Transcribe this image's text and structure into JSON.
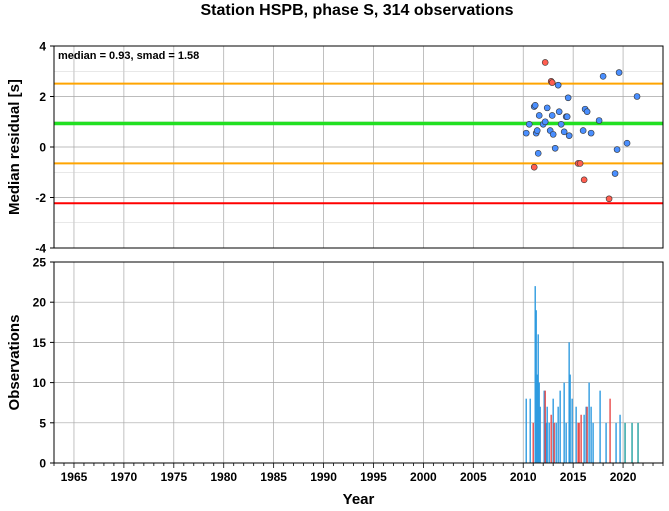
{
  "chart_data": [
    {
      "type": "scatter",
      "title": "Station HSPB, phase S, 314 observations",
      "ylabel": "Median residual [s]",
      "xlim": [
        1963,
        2024
      ],
      "ylim": [
        -4,
        4
      ],
      "y_ticks": [
        -4,
        -2,
        0,
        2,
        4
      ],
      "annotation": "median = 0.93, smad = 1.58",
      "grid": true,
      "reference_lines": [
        {
          "y": 0.93,
          "color": "#22e022"
        },
        {
          "y": 2.51,
          "color": "#ffa500"
        },
        {
          "y": -0.65,
          "color": "#ffa500"
        },
        {
          "y": -2.23,
          "color": "#ff0000"
        }
      ],
      "series": [
        {
          "color": "#4a8fff",
          "points": [
            {
              "x": 2010.3,
              "y": 0.55
            },
            {
              "x": 2010.6,
              "y": 0.9
            },
            {
              "x": 2011.1,
              "y": 1.6
            },
            {
              "x": 2011.2,
              "y": 1.65
            },
            {
              "x": 2011.3,
              "y": 0.55
            },
            {
              "x": 2011.4,
              "y": 0.65
            },
            {
              "x": 2011.5,
              "y": -0.25
            },
            {
              "x": 2011.6,
              "y": 1.25
            },
            {
              "x": 2012.0,
              "y": 0.9
            },
            {
              "x": 2012.2,
              "y": 1.0
            },
            {
              "x": 2012.4,
              "y": 1.55
            },
            {
              "x": 2012.7,
              "y": 0.65
            },
            {
              "x": 2012.9,
              "y": 1.25
            },
            {
              "x": 2013.0,
              "y": 0.5
            },
            {
              "x": 2013.2,
              "y": -0.05
            },
            {
              "x": 2013.5,
              "y": 2.45
            },
            {
              "x": 2013.6,
              "y": 1.4
            },
            {
              "x": 2013.8,
              "y": 0.9
            },
            {
              "x": 2014.1,
              "y": 0.6
            },
            {
              "x": 2014.3,
              "y": 1.2
            },
            {
              "x": 2014.6,
              "y": 0.45
            },
            {
              "x": 2014.5,
              "y": 1.95
            },
            {
              "x": 2014.4,
              "y": 1.2
            },
            {
              "x": 2016.0,
              "y": 0.65
            },
            {
              "x": 2016.2,
              "y": 1.5
            },
            {
              "x": 2016.4,
              "y": 1.4
            },
            {
              "x": 2016.8,
              "y": 0.55
            },
            {
              "x": 2017.6,
              "y": 1.05
            },
            {
              "x": 2018.0,
              "y": 2.8
            },
            {
              "x": 2019.2,
              "y": -1.05
            },
            {
              "x": 2019.4,
              "y": -0.1
            },
            {
              "x": 2019.6,
              "y": 2.95
            },
            {
              "x": 2020.4,
              "y": 0.15
            },
            {
              "x": 2021.4,
              "y": 2.0
            }
          ]
        },
        {
          "color": "#ff5e50",
          "points": [
            {
              "x": 2011.1,
              "y": -0.8
            },
            {
              "x": 2012.2,
              "y": 3.35
            },
            {
              "x": 2012.8,
              "y": 2.6
            },
            {
              "x": 2012.9,
              "y": 2.55
            },
            {
              "x": 2015.5,
              "y": -0.65
            },
            {
              "x": 2015.7,
              "y": -0.65
            },
            {
              "x": 2016.1,
              "y": -1.3
            },
            {
              "x": 2018.6,
              "y": -2.05
            }
          ]
        }
      ]
    },
    {
      "type": "bar",
      "xlabel": "Year",
      "ylabel": "Observations",
      "xlim": [
        1963,
        2024
      ],
      "ylim": [
        0,
        25
      ],
      "y_ticks": [
        0,
        5,
        10,
        15,
        20,
        25
      ],
      "x_ticks": [
        1965,
        1970,
        1975,
        1980,
        1985,
        1990,
        1995,
        2000,
        2005,
        2010,
        2015,
        2020
      ],
      "grid": true,
      "series": [
        {
          "color": "#2f9be0",
          "bars": [
            {
              "x": 2010.3,
              "y": 8
            },
            {
              "x": 2010.7,
              "y": 8
            },
            {
              "x": 2011.2,
              "y": 22
            },
            {
              "x": 2011.3,
              "y": 19
            },
            {
              "x": 2011.4,
              "y": 11
            },
            {
              "x": 2011.5,
              "y": 16
            },
            {
              "x": 2011.6,
              "y": 10
            },
            {
              "x": 2011.7,
              "y": 7
            },
            {
              "x": 2012.1,
              "y": 9
            },
            {
              "x": 2012.3,
              "y": 5
            },
            {
              "x": 2012.4,
              "y": 7
            },
            {
              "x": 2012.6,
              "y": 5
            },
            {
              "x": 2013.0,
              "y": 8
            },
            {
              "x": 2013.3,
              "y": 5
            },
            {
              "x": 2013.5,
              "y": 7
            },
            {
              "x": 2013.7,
              "y": 9
            },
            {
              "x": 2014.1,
              "y": 10
            },
            {
              "x": 2014.3,
              "y": 5
            },
            {
              "x": 2014.6,
              "y": 15
            },
            {
              "x": 2014.7,
              "y": 11
            },
            {
              "x": 2014.9,
              "y": 8
            },
            {
              "x": 2015.3,
              "y": 7
            },
            {
              "x": 2016.1,
              "y": 6
            },
            {
              "x": 2016.3,
              "y": 7
            },
            {
              "x": 2016.6,
              "y": 10
            },
            {
              "x": 2016.8,
              "y": 7
            },
            {
              "x": 2017.0,
              "y": 5
            },
            {
              "x": 2017.7,
              "y": 9
            },
            {
              "x": 2018.3,
              "y": 5
            },
            {
              "x": 2019.3,
              "y": 5
            },
            {
              "x": 2019.7,
              "y": 6
            }
          ]
        },
        {
          "color": "#e84a4a",
          "bars": [
            {
              "x": 2011.0,
              "y": 5
            },
            {
              "x": 2012.2,
              "y": 9
            },
            {
              "x": 2012.8,
              "y": 6
            },
            {
              "x": 2013.1,
              "y": 5
            },
            {
              "x": 2015.5,
              "y": 5
            },
            {
              "x": 2015.6,
              "y": 5
            },
            {
              "x": 2015.8,
              "y": 6
            },
            {
              "x": 2016.4,
              "y": 7
            },
            {
              "x": 2018.7,
              "y": 8
            }
          ]
        },
        {
          "color": "#22a0a0",
          "bars": [
            {
              "x": 2020.2,
              "y": 5
            },
            {
              "x": 2020.9,
              "y": 5
            },
            {
              "x": 2021.5,
              "y": 5
            }
          ]
        }
      ]
    }
  ]
}
